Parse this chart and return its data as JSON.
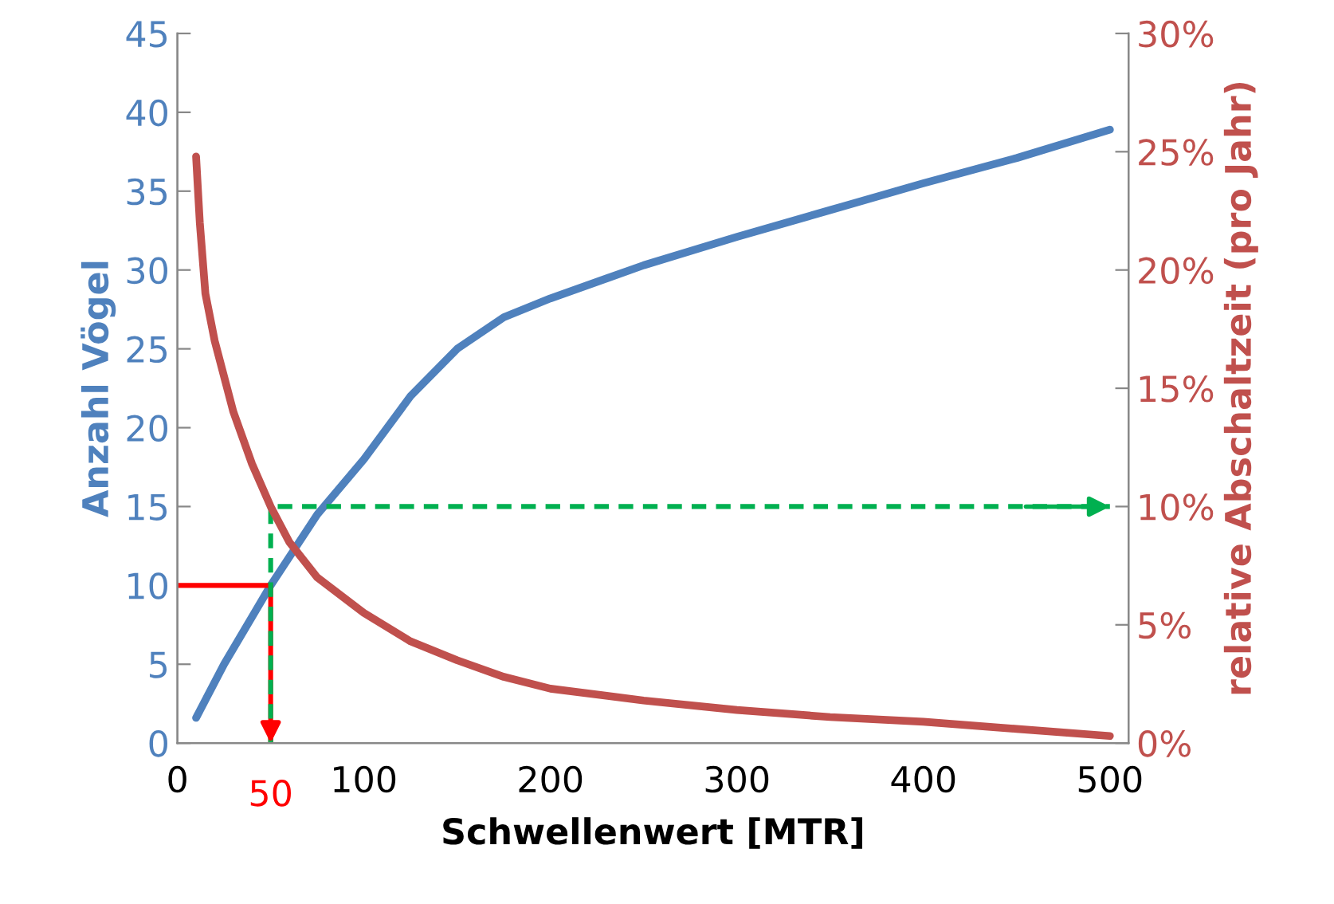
{
  "chart_data": {
    "type": "line",
    "xlabel": "Schwellenwert [MTR]",
    "ylabel": "Anzahl Vögel",
    "y2label": "relative Abschaltzeit (pro Jahr)",
    "xlim": [
      0,
      510
    ],
    "xticks": [
      0,
      100,
      200,
      300,
      400,
      500
    ],
    "ylim": [
      0,
      45
    ],
    "yticks": [
      0,
      5,
      10,
      15,
      20,
      25,
      30,
      35,
      40,
      45
    ],
    "y2lim": [
      0,
      30
    ],
    "y2ticks": [
      {
        "value": 0,
        "label": "0%"
      },
      {
        "value": 5,
        "label": "5%"
      },
      {
        "value": 10,
        "label": "10%"
      },
      {
        "value": 15,
        "label": "15%"
      },
      {
        "value": 20,
        "label": "20%"
      },
      {
        "value": 25,
        "label": "25%"
      },
      {
        "value": 30,
        "label": "30%"
      }
    ],
    "grid": false,
    "legend": false,
    "marker": "none",
    "series": [
      {
        "color": "#4f81bd",
        "x": [
          10,
          25,
          50,
          75,
          100,
          125,
          150,
          175,
          200,
          250,
          300,
          350,
          400,
          450,
          500
        ],
        "values": [
          1.6,
          5,
          10,
          14.5,
          18,
          22,
          25,
          27,
          28.2,
          30.3,
          32.1,
          33.8,
          35.5,
          37.1,
          38.9
        ]
      },
      {
        "color": "#c0504d",
        "axis": "y2",
        "x": [
          10,
          12,
          15,
          20,
          30,
          40,
          50,
          60,
          75,
          100,
          125,
          150,
          175,
          200,
          250,
          300,
          350,
          400,
          450,
          500
        ],
        "values": [
          24.8,
          22,
          19,
          17,
          14,
          11.8,
          10,
          8.5,
          7,
          5.5,
          4.3,
          3.5,
          2.8,
          2.3,
          1.8,
          1.4,
          1.1,
          0.9,
          0.6,
          0.3
        ]
      },
      {
        "color": "#ff0000",
        "x": [
          0,
          50,
          50
        ],
        "values": [
          10,
          10,
          0
        ]
      },
      {
        "color": "#00b050",
        "line_style": "dashed",
        "x": [
          50,
          50,
          500
        ],
        "values": [
          0,
          15,
          15
        ]
      }
    ],
    "annotations": [
      {
        "text": "50",
        "x": 50,
        "y": 0
      }
    ]
  }
}
